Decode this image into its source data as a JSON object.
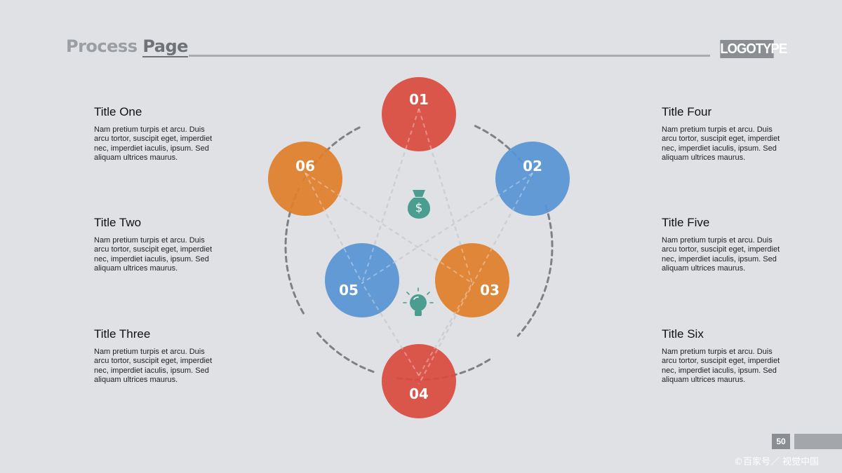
{
  "header": {
    "title_part1": "Process ",
    "title_part2": "Page",
    "logo": "LOGOTYPE"
  },
  "blocks": [
    {
      "title": "Title One",
      "text": "Nam pretium turpis et arcu. Duis arcu tortor, suscipit eget, imperdiet nec, imperdiet iaculis, ipsum. Sed aliquam ultrices maurus."
    },
    {
      "title": "Title Two",
      "text": "Nam pretium turpis et arcu. Duis arcu tortor, suscipit eget, imperdiet nec, imperdiet iaculis, ipsum. Sed aliquam ultrices maurus."
    },
    {
      "title": "Title Three",
      "text": "Nam pretium turpis et arcu. Duis arcu tortor, suscipit eget, imperdiet nec, imperdiet iaculis, ipsum. Sed aliquam ultrices maurus."
    },
    {
      "title": "Title Four",
      "text": "Nam pretium turpis et arcu. Duis arcu tortor, suscipit eget, imperdiet nec, imperdiet iaculis, ipsum. Sed aliquam ultrices maurus."
    },
    {
      "title": "Title Five",
      "text": "Nam pretium turpis et arcu. Duis arcu tortor, suscipit eget, imperdiet nec, imperdiet iaculis, ipsum. Sed aliquam ultrices maurus."
    },
    {
      "title": "Title Six",
      "text": "Nam pretium turpis et arcu. Duis arcu tortor, suscipit eget, imperdiet nec, imperdiet iaculis, ipsum. Sed aliquam ultrices maurus."
    }
  ],
  "nodes": [
    {
      "label": "01",
      "color": "#d94b3f"
    },
    {
      "label": "02",
      "color": "#5895d4"
    },
    {
      "label": "03",
      "color": "#e07f2c"
    },
    {
      "label": "04",
      "color": "#d94b3f"
    },
    {
      "label": "05",
      "color": "#5895d4"
    },
    {
      "label": "06",
      "color": "#e07f2c"
    }
  ],
  "icons": {
    "money_bag": "money-bag-icon",
    "lightbulb": "lightbulb-icon",
    "money_symbol": "$"
  },
  "colors": {
    "icon_teal": "#4a9e8f",
    "connector": "#b5b7ba",
    "arc": "#7d8084"
  },
  "footer": {
    "page_number": "50",
    "watermark": "©百家号／ 视觉中国"
  }
}
